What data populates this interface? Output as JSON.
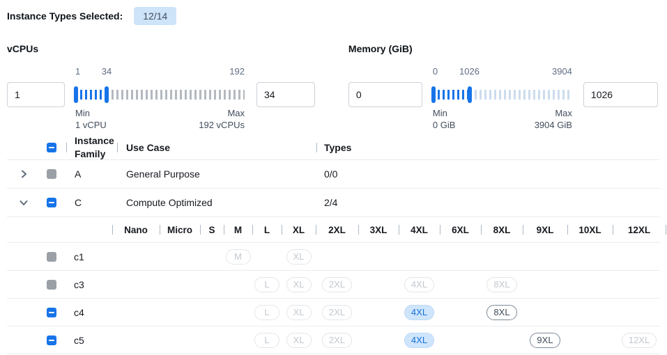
{
  "header": {
    "label": "Instance Types Selected:",
    "badge": "12/14"
  },
  "filters": {
    "vcpus": {
      "title": "vCPUs",
      "min_input": "1",
      "max_input": "34",
      "scale_min": "1",
      "scale_current": "34",
      "scale_max": "192",
      "min_label": "Min",
      "min_sub": "1 vCPU",
      "max_label": "Max",
      "max_sub": "192 vCPUs",
      "active_pct": 18.5,
      "inactive_tick_color": "#b3b9bf"
    },
    "memory": {
      "title": "Memory (GiB)",
      "min_input": "0",
      "max_input": "1026",
      "scale_min": "0",
      "scale_current": "1026",
      "scale_max": "3904",
      "min_label": "Min",
      "min_sub": "0 GiB",
      "max_label": "Max",
      "max_sub": "3904 GiB",
      "active_pct": 26.3,
      "inactive_tick_color": "#ccdcee"
    }
  },
  "table": {
    "columns": {
      "family": "Instance Family",
      "use_case": "Use Case",
      "types": "Types"
    },
    "family_rows": [
      {
        "name": "A",
        "use_case": "General Purpose",
        "types": "0/0",
        "expanded": false,
        "checkbox": "disabled"
      },
      {
        "name": "C",
        "use_case": "Compute Optimized",
        "types": "2/4",
        "expanded": true,
        "checkbox": "indeterminate"
      }
    ],
    "sizes": [
      "Nano",
      "Micro",
      "S",
      "M",
      "L",
      "XL",
      "2XL",
      "3XL",
      "4XL",
      "6XL",
      "8XL",
      "9XL",
      "10XL",
      "12XL"
    ],
    "instance_rows": [
      {
        "name": "c1",
        "checkbox": "disabled",
        "badges": {
          "M": "disabled",
          "XL": "disabled"
        }
      },
      {
        "name": "c3",
        "checkbox": "disabled",
        "badges": {
          "L": "disabled",
          "XL": "disabled",
          "2XL": "disabled",
          "4XL": "disabled",
          "8XL": "disabled"
        }
      },
      {
        "name": "c4",
        "checkbox": "indeterminate",
        "badges": {
          "L": "disabled",
          "XL": "disabled",
          "2XL": "disabled",
          "4XL": "selected",
          "8XL": "enabled"
        }
      },
      {
        "name": "c5",
        "checkbox": "indeterminate",
        "badges": {
          "L": "disabled",
          "XL": "disabled",
          "2XL": "disabled",
          "4XL": "selected",
          "9XL": "enabled",
          "12XL": "disabled"
        }
      }
    ]
  },
  "colors": {
    "accent": "#1774e8",
    "selected_badge_bg": "#cfe5fb",
    "selected_badge_text": "#1673d8",
    "top_badge_bg": "#cde4f9",
    "disabled_checkbox": "#9aa0a6",
    "vcpu_inactive_tick": "#b3b9bf",
    "memory_inactive_tick": "#ccdcee"
  }
}
